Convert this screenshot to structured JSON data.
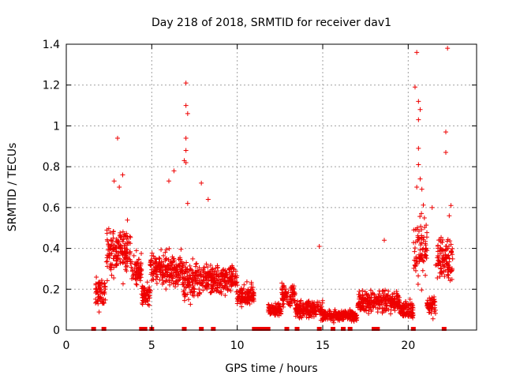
{
  "chart_data": {
    "type": "scatter",
    "title": "Day 218 of 2018, SRMTID for receiver dav1",
    "xlabel": "GPS time / hours",
    "ylabel": "SRMTID / TECUs",
    "xlim": [
      0,
      24
    ],
    "ylim": [
      0,
      1.4
    ],
    "xticks": [
      "0",
      "5",
      "10",
      "15",
      "20"
    ],
    "yticks": [
      "0",
      "0.2",
      "0.4",
      "0.6",
      "0.8",
      "1",
      "1.2",
      "1.4"
    ],
    "grid": true,
    "marker": "+",
    "color": "#ee0000",
    "series": [
      {
        "name": "SRMTID",
        "activity_segments": [
          {
            "x": [
              1.7,
              2.3
            ],
            "level": 0.18,
            "spread": 0.09
          },
          {
            "x": [
              2.3,
              3.8
            ],
            "level": 0.38,
            "spread": 0.14
          },
          {
            "x": [
              3.8,
              4.4
            ],
            "level": 0.3,
            "spread": 0.09
          },
          {
            "x": [
              4.4,
              4.9
            ],
            "level": 0.17,
            "spread": 0.07
          },
          {
            "x": [
              4.9,
              6.8
            ],
            "level": 0.3,
            "spread": 0.1
          },
          {
            "x": [
              6.8,
              7.8
            ],
            "level": 0.24,
            "spread": 0.11
          },
          {
            "x": [
              7.8,
              10.0
            ],
            "level": 0.25,
            "spread": 0.09
          },
          {
            "x": [
              10.0,
              11.0
            ],
            "level": 0.17,
            "spread": 0.06
          },
          {
            "x": [
              11.8,
              12.6
            ],
            "level": 0.1,
            "spread": 0.04
          },
          {
            "x": [
              12.6,
              13.4
            ],
            "level": 0.17,
            "spread": 0.07
          },
          {
            "x": [
              13.4,
              15.0
            ],
            "level": 0.1,
            "spread": 0.05
          },
          {
            "x": [
              15.0,
              17.0
            ],
            "level": 0.07,
            "spread": 0.03
          },
          {
            "x": [
              17.0,
              19.5
            ],
            "level": 0.14,
            "spread": 0.06
          },
          {
            "x": [
              19.5,
              20.3
            ],
            "level": 0.1,
            "spread": 0.06
          },
          {
            "x": [
              20.3,
              21.1
            ],
            "level": 0.4,
            "spread": 0.2
          },
          {
            "x": [
              21.1,
              21.6
            ],
            "level": 0.12,
            "spread": 0.06
          },
          {
            "x": [
              21.6,
              22.6
            ],
            "level": 0.35,
            "spread": 0.12
          }
        ],
        "outliers": [
          [
            3.0,
            0.94
          ],
          [
            3.3,
            0.76
          ],
          [
            2.8,
            0.73
          ],
          [
            3.1,
            0.7
          ],
          [
            6.0,
            0.73
          ],
          [
            6.3,
            0.78
          ],
          [
            7.0,
            1.21
          ],
          [
            7.0,
            1.1
          ],
          [
            7.1,
            1.06
          ],
          [
            7.0,
            0.94
          ],
          [
            7.0,
            0.88
          ],
          [
            6.9,
            0.83
          ],
          [
            7.0,
            0.82
          ],
          [
            7.9,
            0.72
          ],
          [
            8.3,
            0.64
          ],
          [
            7.1,
            0.62
          ],
          [
            14.8,
            0.41
          ],
          [
            18.6,
            0.44
          ],
          [
            20.4,
            1.19
          ],
          [
            20.5,
            1.36
          ],
          [
            20.6,
            1.12
          ],
          [
            20.7,
            1.08
          ],
          [
            20.6,
            1.03
          ],
          [
            20.6,
            0.89
          ],
          [
            20.6,
            0.81
          ],
          [
            20.7,
            0.74
          ],
          [
            20.5,
            0.7
          ],
          [
            20.8,
            0.69
          ],
          [
            21.4,
            0.6
          ],
          [
            22.2,
            0.97
          ],
          [
            22.2,
            0.87
          ],
          [
            22.3,
            1.38
          ],
          [
            22.5,
            0.61
          ],
          [
            22.4,
            0.56
          ]
        ]
      }
    ],
    "zero_flags": [
      1.6,
      2.2,
      4.4,
      4.6,
      5.0,
      6.9,
      7.9,
      8.6,
      11.0,
      11.2,
      11.4,
      11.6,
      11.8,
      12.9,
      13.5,
      14.8,
      15.6,
      16.2,
      16.6,
      18.0,
      18.2,
      20.3,
      22.1
    ]
  }
}
